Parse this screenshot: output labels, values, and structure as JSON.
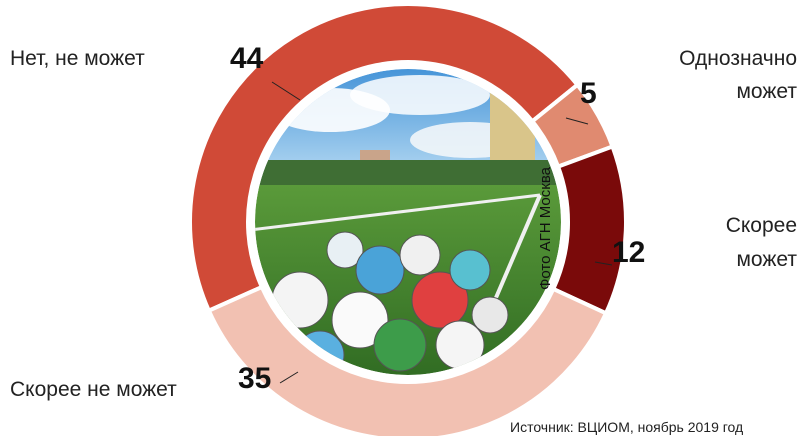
{
  "chart_data": {
    "type": "donut",
    "categories": [
      "Нет, не может",
      "Однозначно может",
      "Скорее может",
      "Скорее не может"
    ],
    "values": [
      44,
      5,
      12,
      35
    ],
    "colors": [
      "#d04a37",
      "#e08a70",
      "#7a0a0a",
      "#f2c1b2"
    ],
    "photo_credit": "Фото АГН Москва",
    "source": "Источник: ВЦИОМ, ноябрь 2019 год"
  }
}
